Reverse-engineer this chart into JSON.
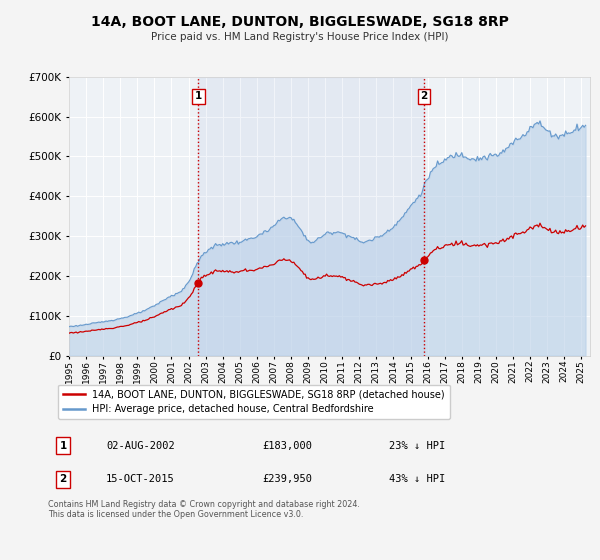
{
  "title": "14A, BOOT LANE, DUNTON, BIGGLESWADE, SG18 8RP",
  "subtitle": "Price paid vs. HM Land Registry's House Price Index (HPI)",
  "red_label": "14A, BOOT LANE, DUNTON, BIGGLESWADE, SG18 8RP (detached house)",
  "blue_label": "HPI: Average price, detached house, Central Bedfordshire",
  "sale1_date": "02-AUG-2002",
  "sale1_price": "£183,000",
  "sale1_hpi": "23% ↓ HPI",
  "sale1_year": 2002.583,
  "sale1_price_val": 183000,
  "sale2_date": "15-OCT-2015",
  "sale2_price": "£239,950",
  "sale2_hpi": "43% ↓ HPI",
  "sale2_year": 2015.792,
  "sale2_price_val": 239950,
  "red_color": "#cc0000",
  "blue_color": "#6699cc",
  "blue_fill_color": "#c8d8e8",
  "vline_color": "#cc0000",
  "background_color": "#f4f4f4",
  "plot_bg_color": "#f0f0f0",
  "grid_color": "#dddddd",
  "footer_text": "Contains HM Land Registry data © Crown copyright and database right 2024.\nThis data is licensed under the Open Government Licence v3.0.",
  "ylim": [
    0,
    700000
  ],
  "xlim_start": 1995.0,
  "xlim_end": 2025.5
}
